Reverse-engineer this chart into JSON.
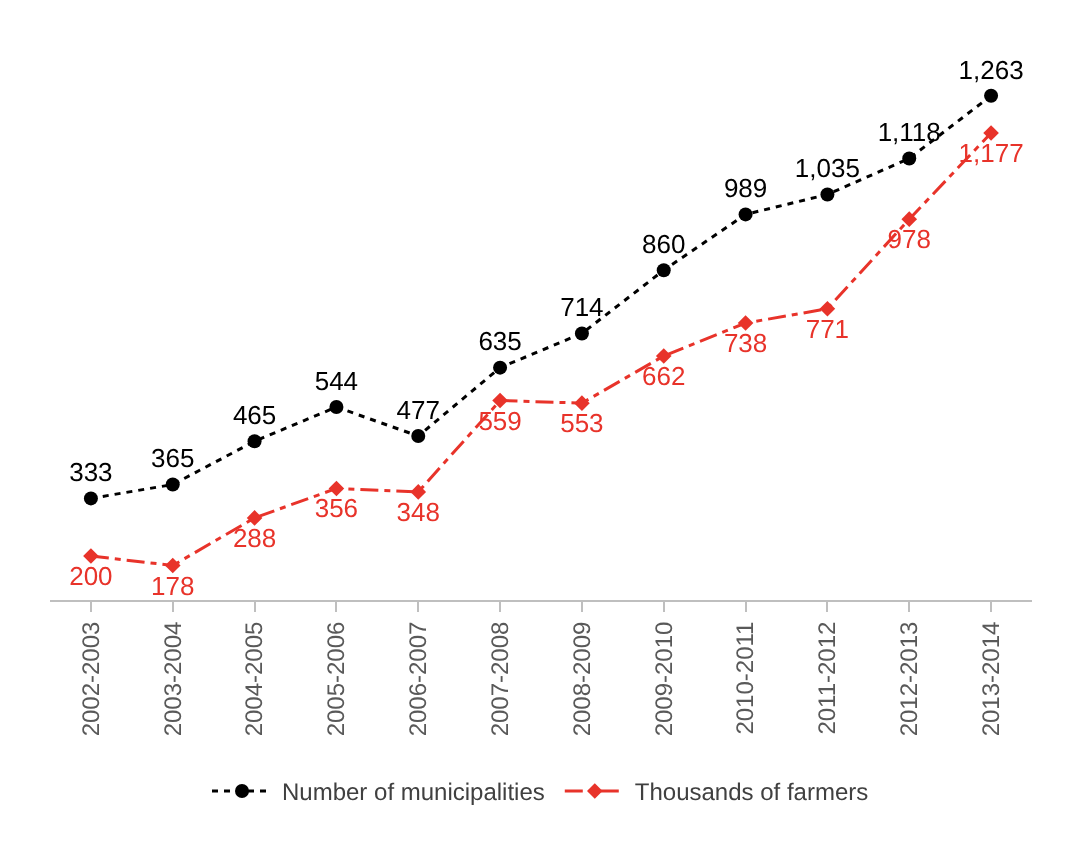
{
  "chart_data": {
    "type": "line",
    "categories": [
      "2002-2003",
      "2003-2004",
      "2004-2005",
      "2005-2006",
      "2006-2007",
      "2007-2008",
      "2008-2009",
      "2009-2010",
      "2010-2011",
      "2011-2012",
      "2012-2013",
      "2013-2014"
    ],
    "series": [
      {
        "name": "Number of municipalities",
        "color": "#000000",
        "marker": "circle",
        "line_style": "dotted",
        "values": [
          333,
          365,
          465,
          544,
          477,
          635,
          714,
          860,
          989,
          1035,
          1118,
          1263
        ],
        "value_labels": [
          "333",
          "365",
          "465",
          "544",
          "477",
          "635",
          "714",
          "860",
          "989",
          "1,035",
          "1,118",
          "1,263"
        ]
      },
      {
        "name": "Thousands of farmers",
        "color": "#e8332a",
        "marker": "diamond",
        "line_style": "dashed",
        "values": [
          200,
          178,
          288,
          356,
          348,
          559,
          553,
          662,
          738,
          771,
          978,
          1177
        ],
        "value_labels": [
          "200",
          "178",
          "288",
          "356",
          "348",
          "559",
          "553",
          "662",
          "738",
          "771",
          "978",
          "1,177"
        ]
      }
    ],
    "legend": "bottom",
    "tick_labels": "x"
  }
}
